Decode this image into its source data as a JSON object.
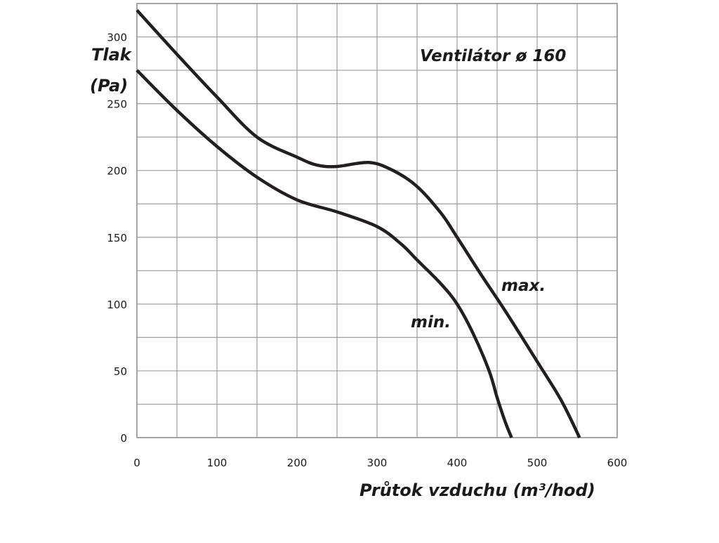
{
  "chart_data": {
    "type": "line",
    "title": "Ventilátor ø 160",
    "xlabel": "Průtok vzduchu (m³/hod)",
    "ylabel": [
      "Tlak",
      "(Pa)"
    ],
    "xlim": [
      0,
      600
    ],
    "ylim": [
      0,
      325
    ],
    "xticks": [
      0,
      100,
      200,
      300,
      400,
      500,
      600
    ],
    "yticks": [
      0,
      50,
      100,
      150,
      200,
      250,
      300
    ],
    "grid": true,
    "series": [
      {
        "name": "max.",
        "x": [
          0,
          50,
          100,
          150,
          200,
          225,
          250,
          290,
          320,
          350,
          380,
          400,
          430,
          460,
          500,
          530,
          553
        ],
        "y": [
          320,
          287,
          255,
          225,
          210,
          204,
          203,
          206,
          200,
          188,
          168,
          150,
          122,
          95,
          57,
          28,
          0
        ]
      },
      {
        "name": "min.",
        "x": [
          0,
          50,
          100,
          150,
          200,
          250,
          300,
          330,
          350,
          380,
          400,
          420,
          440,
          450,
          460,
          468
        ],
        "y": [
          275,
          245,
          218,
          195,
          178,
          169,
          158,
          145,
          133,
          115,
          100,
          78,
          50,
          30,
          12,
          0
        ]
      }
    ],
    "color": "#231f20"
  }
}
